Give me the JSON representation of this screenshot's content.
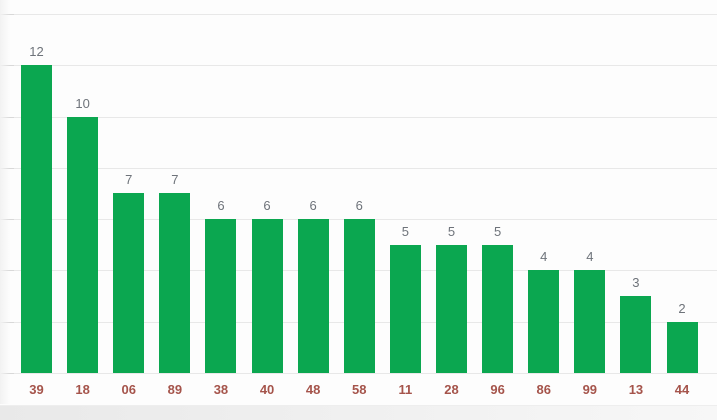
{
  "chart_data": {
    "type": "bar",
    "title": "",
    "xlabel": "",
    "ylabel": "",
    "categories": [
      "39",
      "18",
      "06",
      "89",
      "38",
      "40",
      "48",
      "58",
      "11",
      "28",
      "96",
      "86",
      "99",
      "13",
      "44"
    ],
    "values": [
      12,
      10,
      7,
      7,
      6,
      6,
      6,
      6,
      5,
      5,
      5,
      4,
      4,
      3,
      2
    ],
    "ylim": [
      0,
      14
    ],
    "gridline_step": 2,
    "grid": true,
    "legend": "none",
    "y_axis_tick_labels_shown": false,
    "value_labels_shown": true
  },
  "colors": {
    "bar": "#0ba750",
    "value_label": "#6e737a",
    "x_label": "#a5544b",
    "gridline": "#e8e8e8",
    "axis_tick": "#d8d8d8",
    "background": "#fdfdfd"
  }
}
